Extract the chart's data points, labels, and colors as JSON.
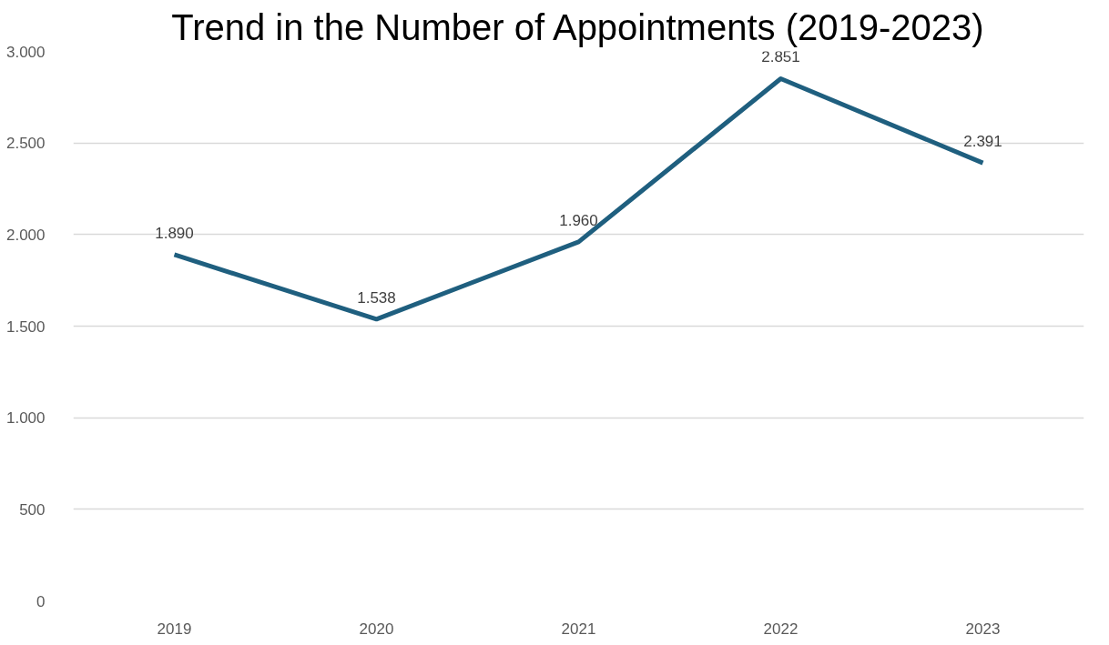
{
  "chart_data": {
    "type": "line",
    "title": "Trend in the Number of Appointments (2019-2023)",
    "categories": [
      "2019",
      "2020",
      "2021",
      "2022",
      "2023"
    ],
    "series": [
      {
        "color": "#1f5f7f",
        "values": [
          1890,
          1538,
          1960,
          2851,
          2391
        ],
        "value_labels": [
          "1.890",
          "1.538",
          "1.960",
          "2.851",
          "2.391"
        ]
      }
    ],
    "ylim": [
      0,
      3000
    ],
    "yticks": [
      {
        "value": 0,
        "label": "0"
      },
      {
        "value": 500,
        "label": "500"
      },
      {
        "value": 1000,
        "label": "1.000"
      },
      {
        "value": 1500,
        "label": "1.500"
      },
      {
        "value": 2000,
        "label": "2.000"
      },
      {
        "value": 2500,
        "label": "2.500"
      },
      {
        "value": 3000,
        "label": "3.000"
      }
    ],
    "grid": "y",
    "marker": "none",
    "line_style": "solid"
  }
}
